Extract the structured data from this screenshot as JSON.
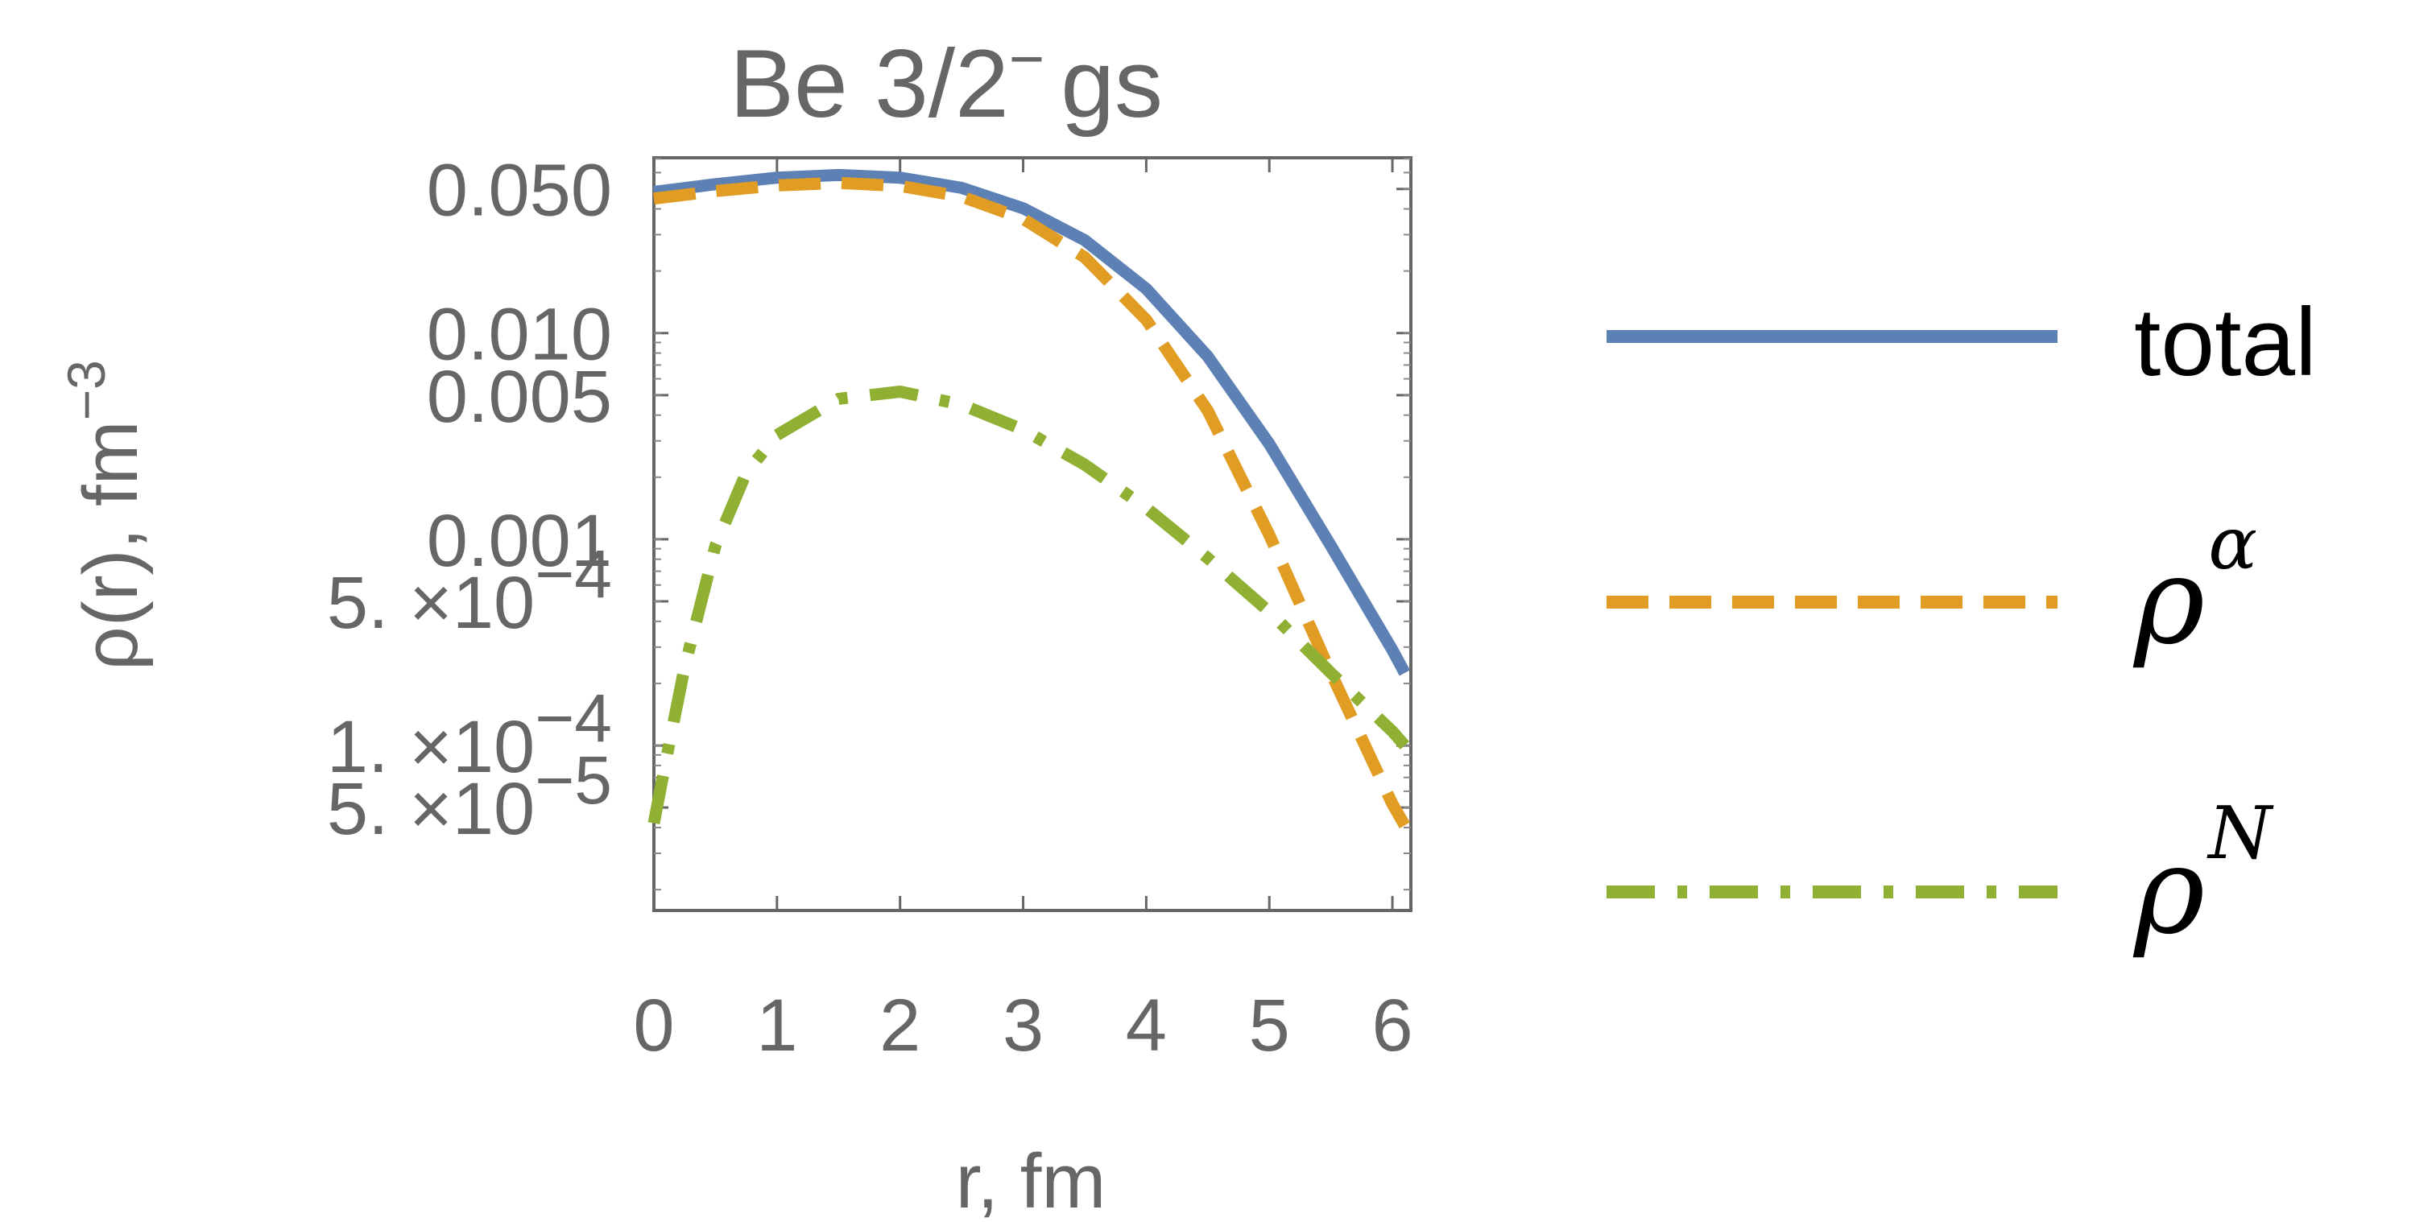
{
  "chart_data": {
    "type": "line",
    "title": {
      "main": "Be 3/2",
      "sup": "−",
      "suffix": "gs"
    },
    "xlabel": "r, fm",
    "ylabel": {
      "main": "ρ(r), fm",
      "sup": "−3"
    },
    "xlim": [
      0,
      6.15
    ],
    "ylim_log10": [
      -4.8,
      -1.15
    ],
    "yscale": "log",
    "grid": false,
    "legend_position": "right",
    "x_ticks": [
      "0",
      "1",
      "2",
      "3",
      "4",
      "5",
      "6"
    ],
    "y_ticks": [
      {
        "value": 0.05,
        "label": "0.050",
        "exp": ""
      },
      {
        "value": 0.01,
        "label": "0.010",
        "exp": ""
      },
      {
        "value": 0.005,
        "label": "0.005",
        "exp": ""
      },
      {
        "value": 0.001,
        "label": "0.001",
        "exp": ""
      },
      {
        "value": 0.0005,
        "label": "5. ×10",
        "exp": "−4"
      },
      {
        "value": 0.0001,
        "label": "1. ×10",
        "exp": "−4"
      },
      {
        "value": 5e-05,
        "label": "5. ×10",
        "exp": "−5"
      }
    ],
    "series": [
      {
        "name": "total",
        "legend_kind": "text",
        "color": "#5E81B5",
        "dash": "",
        "x": [
          0,
          0.5,
          1.0,
          1.5,
          2.0,
          2.5,
          3.0,
          3.5,
          4.0,
          4.5,
          5.0,
          5.5,
          6.0,
          6.1
        ],
        "values": [
          0.0483,
          0.0527,
          0.0567,
          0.0584,
          0.0567,
          0.0506,
          0.0403,
          0.0282,
          0.0164,
          0.0077,
          0.0029,
          0.00093,
          0.00029,
          0.000225
        ]
      },
      {
        "name": "ρ",
        "legend_sup": "α",
        "legend_kind": "symbol",
        "color": "#E19C24",
        "dash": "52,26",
        "x": [
          0,
          0.5,
          1.0,
          1.5,
          2.0,
          2.5,
          3.0,
          3.5,
          4.0,
          4.5,
          5.0,
          5.5,
          6.0,
          6.1
        ],
        "values": [
          0.0449,
          0.0488,
          0.052,
          0.0535,
          0.0517,
          0.0459,
          0.0358,
          0.0233,
          0.0116,
          0.0042,
          0.00105,
          0.000225,
          5.2e-05,
          4.1e-05
        ]
      },
      {
        "name": "ρ",
        "legend_sup": "N",
        "legend_kind": "symbol",
        "color": "#8FB032",
        "dash": "60,28,12,28",
        "x": [
          0,
          0.1,
          0.25,
          0.5,
          0.75,
          1.0,
          1.5,
          2.0,
          2.5,
          3.0,
          3.5,
          4.0,
          4.5,
          5.0,
          5.5,
          6.0,
          6.1
        ],
        "values": [
          4.2e-05,
          8.6e-05,
          0.00024,
          0.00093,
          0.0021,
          0.0032,
          0.0048,
          0.0052,
          0.0045,
          0.0034,
          0.0023,
          0.00142,
          0.00081,
          0.000445,
          0.000225,
          0.000117,
          0.0001
        ]
      }
    ]
  }
}
